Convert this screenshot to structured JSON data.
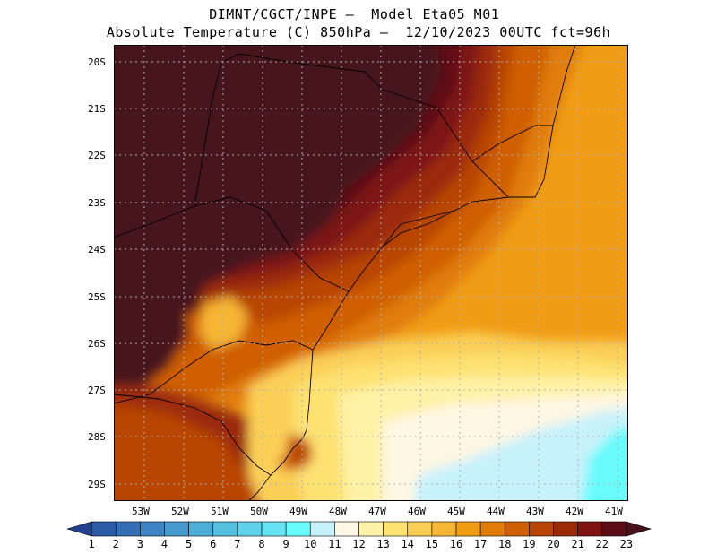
{
  "title": {
    "line1": "DIMNT/CGCT/INPE –  Model Eta05_M01_",
    "line2": "Absolute Temperature (C) 850hPa –  12/10/2023 00UTC fct=96h"
  },
  "map": {
    "lat_ticks": [
      "20S",
      "21S",
      "22S",
      "23S",
      "24S",
      "25S",
      "26S",
      "27S",
      "28S",
      "29S"
    ],
    "lon_ticks": [
      "53W",
      "52W",
      "51W",
      "50W",
      "49W",
      "48W",
      "47W",
      "46W",
      "45W",
      "44W",
      "43W",
      "42W",
      "41W"
    ],
    "lat_range": [
      -29.4,
      -19.7
    ],
    "lon_range": [
      -53.8,
      -40.8
    ]
  },
  "colorbar": {
    "labels": [
      "1",
      "2",
      "3",
      "4",
      "5",
      "6",
      "7",
      "8",
      "9",
      "10",
      "11",
      "12",
      "13",
      "14",
      "15",
      "16",
      "17",
      "18",
      "19",
      "20",
      "21",
      "22",
      "23"
    ],
    "colors": [
      "#23408e",
      "#2b5aa7",
      "#346fb6",
      "#3c84c3",
      "#4599cd",
      "#4daed8",
      "#56c0e0",
      "#5fd2e9",
      "#66e3f3",
      "#67fbfc",
      "#c8f2fb",
      "#fff6e3",
      "#fff2a6",
      "#fde272",
      "#fbcf56",
      "#f6b535",
      "#f09c15",
      "#e07d08",
      "#cf5f05",
      "#b84406",
      "#9b2a09",
      "#7e1412",
      "#5d0c15",
      "#47121a"
    ]
  }
}
